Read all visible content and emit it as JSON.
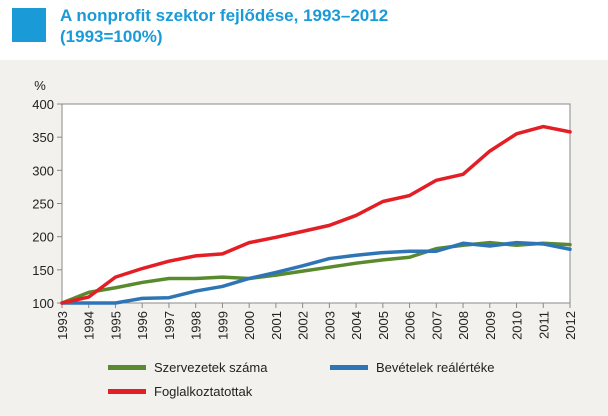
{
  "title": {
    "line1": "A nonprofit szektor fejlődése, 1993–2012",
    "line2": "(1993=100%)",
    "accent_color": "#1a9bd7"
  },
  "chart_data": {
    "type": "line",
    "ylabel": "%",
    "ylim": [
      100,
      400
    ],
    "yticks": [
      100,
      150,
      200,
      250,
      300,
      350,
      400
    ],
    "grid": false,
    "legend_position": "bottom",
    "x": [
      "1993",
      "1994",
      "1995",
      "1996",
      "1997",
      "1998",
      "1999",
      "2000",
      "2001",
      "2002",
      "2003",
      "2004",
      "2005",
      "2006",
      "2007",
      "2008",
      "2009",
      "2010",
      "2011",
      "2012"
    ],
    "series": [
      {
        "name": "Szervezetek száma",
        "color": "#5a8a2e",
        "values": [
          100,
          116,
          123,
          131,
          137,
          137,
          139,
          137,
          142,
          148,
          154,
          160,
          165,
          169,
          182,
          187,
          191,
          187,
          190,
          188
        ]
      },
      {
        "name": "Bevételek reálértéke",
        "color": "#2e75b6",
        "values": [
          100,
          100,
          100,
          107,
          108,
          118,
          125,
          137,
          146,
          156,
          167,
          172,
          176,
          178,
          178,
          190,
          186,
          191,
          189,
          181
        ]
      },
      {
        "name": "Foglalkoztatottak",
        "color": "#e31e24",
        "values": [
          100,
          109,
          139,
          152,
          163,
          171,
          174,
          191,
          199,
          208,
          217,
          232,
          253,
          262,
          285,
          294,
          329,
          355,
          366,
          358
        ]
      }
    ]
  }
}
